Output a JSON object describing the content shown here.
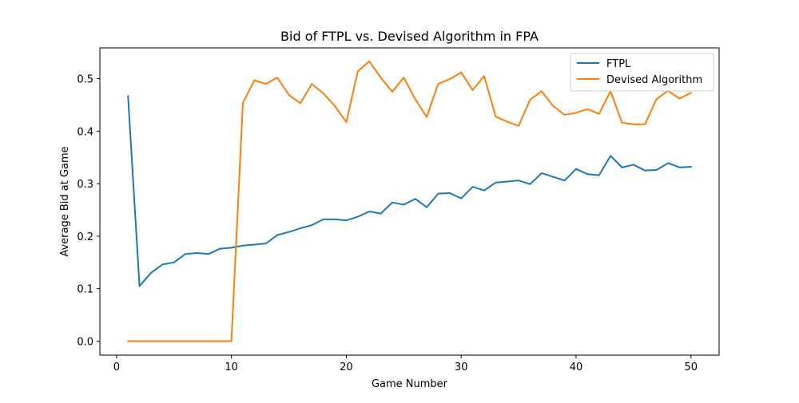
{
  "chart_data": {
    "type": "line",
    "title": "Bid of FTPL vs. Devised Algorithm in FPA",
    "xlabel": "Game Number",
    "ylabel": "Average Bid at Game",
    "xlim": [
      -1.45,
      52.45
    ],
    "ylim": [
      -0.0266,
      0.5586
    ],
    "xticks": [
      0,
      10,
      20,
      30,
      40,
      50
    ],
    "xtick_labels": [
      "0",
      "10",
      "20",
      "30",
      "40",
      "50"
    ],
    "yticks": [
      0.0,
      0.1,
      0.2,
      0.3,
      0.4,
      0.5
    ],
    "ytick_labels": [
      "0.0",
      "0.1",
      "0.2",
      "0.3",
      "0.4",
      "0.5"
    ],
    "grid": false,
    "legend_position": "top-right",
    "x": [
      1,
      2,
      3,
      4,
      5,
      6,
      7,
      8,
      9,
      10,
      11,
      12,
      13,
      14,
      15,
      16,
      17,
      18,
      19,
      20,
      21,
      22,
      23,
      24,
      25,
      26,
      27,
      28,
      29,
      30,
      31,
      32,
      33,
      34,
      35,
      36,
      37,
      38,
      39,
      40,
      41,
      42,
      43,
      44,
      45,
      46,
      47,
      48,
      49,
      50
    ],
    "series": [
      {
        "name": "FTPL",
        "color": "#1f77b4",
        "values": [
          0.467,
          0.105,
          0.13,
          0.146,
          0.15,
          0.166,
          0.168,
          0.166,
          0.176,
          0.178,
          0.182,
          0.184,
          0.186,
          0.202,
          0.208,
          0.215,
          0.221,
          0.232,
          0.232,
          0.23,
          0.237,
          0.247,
          0.243,
          0.264,
          0.26,
          0.271,
          0.255,
          0.281,
          0.282,
          0.272,
          0.294,
          0.287,
          0.302,
          0.304,
          0.306,
          0.299,
          0.32,
          0.313,
          0.306,
          0.328,
          0.318,
          0.316,
          0.353,
          0.331,
          0.336,
          0.325,
          0.326,
          0.339,
          0.331,
          0.332
        ]
      },
      {
        "name": "Devised Algorithm",
        "color": "#ff7f0e",
        "values": [
          0.0,
          0.0,
          0.0,
          0.0,
          0.0,
          0.0,
          0.0,
          0.0,
          0.0,
          0.0,
          0.454,
          0.497,
          0.49,
          0.502,
          0.469,
          0.453,
          0.49,
          0.472,
          0.448,
          0.417,
          0.514,
          0.533,
          0.502,
          0.475,
          0.502,
          0.461,
          0.427,
          0.49,
          0.499,
          0.512,
          0.478,
          0.505,
          0.428,
          0.418,
          0.41,
          0.46,
          0.476,
          0.448,
          0.431,
          0.435,
          0.442,
          0.433,
          0.476,
          0.416,
          0.413,
          0.413,
          0.461,
          0.477,
          0.462,
          0.473
        ]
      }
    ]
  }
}
